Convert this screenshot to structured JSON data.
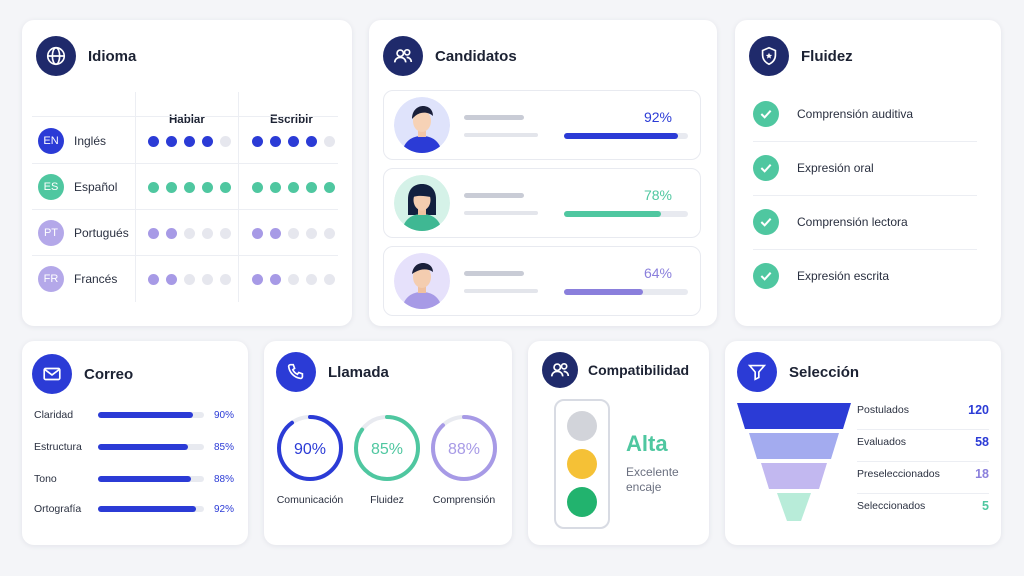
{
  "idioma": {
    "title": "Idioma",
    "col_speak": "Hablar",
    "col_write": "Escribir",
    "languages": [
      {
        "code": "EN",
        "name": "Inglés",
        "speak": 4,
        "write": 4,
        "color": "#2b3bd6"
      },
      {
        "code": "ES",
        "name": "Español",
        "speak": 5,
        "write": 5,
        "color": "#4fc7a0"
      },
      {
        "code": "PT",
        "name": "Portugués",
        "speak": 2,
        "write": 2,
        "color": "#a79ae6"
      },
      {
        "code": "FR",
        "name": "Francés",
        "speak": 2,
        "write": 2,
        "color": "#a79ae6"
      }
    ]
  },
  "candidatos": {
    "title": "Candidatos",
    "items": [
      {
        "percent": "92%",
        "value": 0.92,
        "color": "#2b3bd6"
      },
      {
        "percent": "78%",
        "value": 0.78,
        "color": "#4fc7a0"
      },
      {
        "percent": "64%",
        "value": 0.64,
        "color": "#8a7fdc"
      }
    ]
  },
  "fluidez": {
    "title": "Fluidez",
    "items": [
      "Comprensión auditiva",
      "Expresión oral",
      "Comprensión lectora",
      "Expresión escrita"
    ]
  },
  "correo": {
    "title": "Correo",
    "items": [
      {
        "label": "Claridad",
        "percent": "90%",
        "value": 0.9
      },
      {
        "label": "Estructura",
        "percent": "85%",
        "value": 0.85
      },
      {
        "label": "Tono",
        "percent": "88%",
        "value": 0.88
      },
      {
        "label": "Ortografía",
        "percent": "92%",
        "value": 0.92
      }
    ]
  },
  "llamada": {
    "title": "Llamada",
    "rings": [
      {
        "label": "Comunicación",
        "percent": "90%",
        "value": 0.9,
        "color": "#2b3bd6"
      },
      {
        "label": "Fluidez",
        "percent": "85%",
        "value": 0.85,
        "color": "#4fc7a0"
      },
      {
        "label": "Comprensión",
        "percent": "88%",
        "value": 0.88,
        "color": "#a79ae6"
      }
    ]
  },
  "compatibilidad": {
    "title": "Compatibilidad",
    "level": "Alta",
    "description": "Excelente encaje",
    "active_light": "green"
  },
  "seleccion": {
    "title": "Selección",
    "stages": [
      {
        "label": "Postulados",
        "value": "120",
        "color": "#2b3bd6"
      },
      {
        "label": "Evaluados",
        "value": "58",
        "color": "#2b3bd6"
      },
      {
        "label": "Preseleccionados",
        "value": "18",
        "color": "#8a7fdc"
      },
      {
        "label": "Seleccionados",
        "value": "5",
        "color": "#4fc7a0"
      }
    ]
  }
}
